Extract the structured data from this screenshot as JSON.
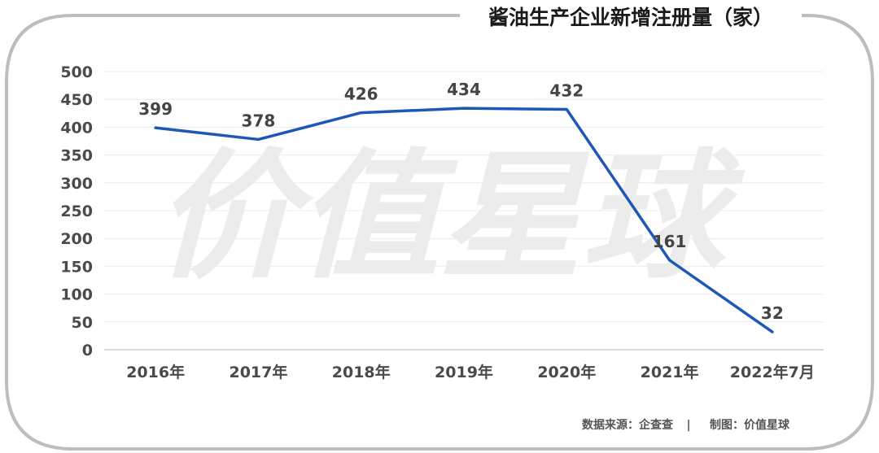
{
  "chart_data": {
    "type": "line",
    "title": "酱油生产企业新增注册量（家）",
    "categories": [
      "2016年",
      "2017年",
      "2018年",
      "2019年",
      "2020年",
      "2021年",
      "2022年7月"
    ],
    "series": [
      {
        "values": [
          399,
          378,
          426,
          434,
          432,
          161,
          32
        ]
      }
    ],
    "data_labels": [
      "399",
      "378",
      "426",
      "434",
      "432",
      "161",
      "32"
    ],
    "yticks": [
      "0",
      "50",
      "100",
      "150",
      "200",
      "250",
      "300",
      "350",
      "400",
      "450",
      "500"
    ],
    "ylim": [
      0,
      500
    ],
    "grid": true,
    "line_color": "#1f57b8",
    "frame_color": "#bdbdbd"
  },
  "watermark": "价值星球",
  "footer": {
    "source": "数据来源：企查查",
    "separator": "|",
    "credit": "制图：价值星球"
  }
}
